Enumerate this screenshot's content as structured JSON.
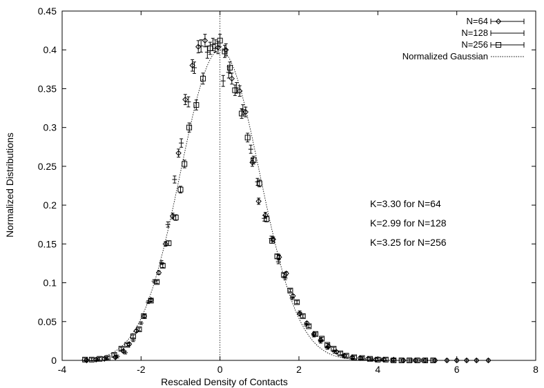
{
  "chart_data": {
    "type": "scatter",
    "title": "",
    "xlabel": "Rescaled Density of Contacts",
    "ylabel": "Normalized Distributions",
    "xlim": [
      -4,
      8
    ],
    "ylim": [
      0,
      0.45
    ],
    "x_ticks": [
      "-4",
      "-2",
      "0",
      "2",
      "4",
      "6",
      "8"
    ],
    "y_ticks": [
      "0",
      "0.05",
      "0.1",
      "0.15",
      "0.2",
      "0.25",
      "0.3",
      "0.35",
      "0.4",
      "0.45"
    ],
    "grid": false,
    "legend_position": "top-right",
    "annotations": [
      "K=3.30 for N=64",
      "K=2.99 for N=128",
      "K=3.25 for N=256"
    ],
    "series": [
      {
        "name": "N=64",
        "marker": "diamond",
        "points": [
          [
            -3.38,
            0.0
          ],
          [
            -3.14,
            0.001
          ],
          [
            -2.93,
            0.002
          ],
          [
            -2.65,
            0.004
          ],
          [
            -2.45,
            0.012
          ],
          [
            -2.3,
            0.021
          ],
          [
            -2.12,
            0.038
          ],
          [
            -1.92,
            0.057
          ],
          [
            -1.75,
            0.078
          ],
          [
            -1.55,
            0.113
          ],
          [
            -1.38,
            0.15
          ],
          [
            -1.2,
            0.186
          ],
          [
            -1.05,
            0.267
          ],
          [
            -0.88,
            0.336
          ],
          [
            -0.7,
            0.38
          ],
          [
            -0.55,
            0.404
          ],
          [
            -0.38,
            0.412
          ],
          [
            -0.05,
            0.403
          ],
          [
            0.15,
            0.4
          ],
          [
            0.3,
            0.363
          ],
          [
            0.5,
            0.347
          ],
          [
            0.65,
            0.32
          ],
          [
            0.82,
            0.255
          ],
          [
            0.98,
            0.205
          ],
          [
            1.15,
            0.187
          ],
          [
            1.35,
            0.156
          ],
          [
            1.5,
            0.133
          ],
          [
            1.68,
            0.112
          ],
          [
            1.85,
            0.083
          ],
          [
            2.02,
            0.06
          ],
          [
            2.2,
            0.048
          ],
          [
            2.38,
            0.034
          ],
          [
            2.55,
            0.026
          ],
          [
            2.75,
            0.018
          ],
          [
            2.95,
            0.011
          ],
          [
            3.15,
            0.006
          ],
          [
            3.35,
            0.004
          ],
          [
            3.55,
            0.003
          ],
          [
            3.75,
            0.002
          ],
          [
            3.95,
            0.001
          ],
          [
            4.15,
            0.001
          ],
          [
            4.4,
            0.001
          ],
          [
            4.65,
            0.0
          ],
          [
            4.95,
            0.0
          ],
          [
            5.2,
            0.0
          ],
          [
            5.45,
            0.0
          ],
          [
            5.75,
            0.0
          ],
          [
            6.0,
            0.0
          ],
          [
            6.25,
            0.0
          ],
          [
            6.5,
            0.0
          ],
          [
            6.8,
            0.0
          ]
        ]
      },
      {
        "name": "N=128",
        "marker": "plus",
        "points": [
          [
            -3.1,
            0.001
          ],
          [
            -2.87,
            0.002
          ],
          [
            -2.6,
            0.005
          ],
          [
            -2.4,
            0.01
          ],
          [
            -2.2,
            0.026
          ],
          [
            -2.0,
            0.048
          ],
          [
            -1.82,
            0.075
          ],
          [
            -1.67,
            0.102
          ],
          [
            -1.48,
            0.126
          ],
          [
            -1.32,
            0.175
          ],
          [
            -1.15,
            0.233
          ],
          [
            -0.98,
            0.28
          ],
          [
            -0.8,
            0.333
          ],
          [
            -0.65,
            0.377
          ],
          [
            -0.48,
            0.405
          ],
          [
            -0.32,
            0.397
          ],
          [
            -0.18,
            0.407
          ],
          [
            0.08,
            0.36
          ],
          [
            0.22,
            0.371
          ],
          [
            0.42,
            0.351
          ],
          [
            0.58,
            0.323
          ],
          [
            0.78,
            0.272
          ],
          [
            0.95,
            0.23
          ],
          [
            1.12,
            0.183
          ],
          [
            1.3,
            0.157
          ],
          [
            1.48,
            0.127
          ],
          [
            1.65,
            0.106
          ],
          [
            1.83,
            0.08
          ],
          [
            2.02,
            0.062
          ],
          [
            2.18,
            0.046
          ],
          [
            2.38,
            0.032
          ],
          [
            2.55,
            0.024
          ],
          [
            2.72,
            0.016
          ],
          [
            2.9,
            0.011
          ],
          [
            3.12,
            0.006
          ],
          [
            3.35,
            0.003
          ],
          [
            3.6,
            0.002
          ],
          [
            3.85,
            0.001
          ],
          [
            4.1,
            0.001
          ],
          [
            4.35,
            0.0
          ],
          [
            4.6,
            0.0
          ],
          [
            4.85,
            0.0
          ],
          [
            5.1,
            0.0
          ]
        ]
      },
      {
        "name": "N=256",
        "marker": "square",
        "points": [
          [
            -3.42,
            0.001
          ],
          [
            -3.25,
            0.001
          ],
          [
            -3.05,
            0.002
          ],
          [
            -2.85,
            0.003
          ],
          [
            -2.68,
            0.007
          ],
          [
            -2.5,
            0.015
          ],
          [
            -2.35,
            0.02
          ],
          [
            -2.2,
            0.031
          ],
          [
            -2.05,
            0.04
          ],
          [
            -1.93,
            0.057
          ],
          [
            -1.75,
            0.077
          ],
          [
            -1.6,
            0.101
          ],
          [
            -1.45,
            0.122
          ],
          [
            -1.3,
            0.151
          ],
          [
            -1.12,
            0.184
          ],
          [
            -1.0,
            0.22
          ],
          [
            -0.9,
            0.253
          ],
          [
            -0.78,
            0.3
          ],
          [
            -0.6,
            0.329
          ],
          [
            -0.43,
            0.363
          ],
          [
            -0.25,
            0.402
          ],
          [
            -0.12,
            0.405
          ],
          [
            0.0,
            0.412
          ],
          [
            0.12,
            0.398
          ],
          [
            0.25,
            0.377
          ],
          [
            0.38,
            0.348
          ],
          [
            0.55,
            0.318
          ],
          [
            0.7,
            0.287
          ],
          [
            0.85,
            0.258
          ],
          [
            1.0,
            0.228
          ],
          [
            1.18,
            0.182
          ],
          [
            1.32,
            0.154
          ],
          [
            1.45,
            0.134
          ],
          [
            1.62,
            0.11
          ],
          [
            1.78,
            0.09
          ],
          [
            1.95,
            0.075
          ],
          [
            2.1,
            0.057
          ],
          [
            2.25,
            0.044
          ],
          [
            2.42,
            0.034
          ],
          [
            2.58,
            0.028
          ],
          [
            2.72,
            0.02
          ],
          [
            2.88,
            0.015
          ],
          [
            3.05,
            0.009
          ],
          [
            3.2,
            0.006
          ],
          [
            3.4,
            0.004
          ],
          [
            3.6,
            0.003
          ],
          [
            3.8,
            0.002
          ],
          [
            4.0,
            0.001
          ],
          [
            4.2,
            0.001
          ],
          [
            4.4,
            0.0
          ],
          [
            4.6,
            0.0
          ],
          [
            4.8,
            0.0
          ],
          [
            5.0,
            0.0
          ],
          [
            5.2,
            0.0
          ],
          [
            5.4,
            0.0
          ]
        ]
      },
      {
        "name": "Normalized Gaussian",
        "style": "dotted-line",
        "mean": 0.0,
        "amplitude": 0.4
      }
    ]
  }
}
